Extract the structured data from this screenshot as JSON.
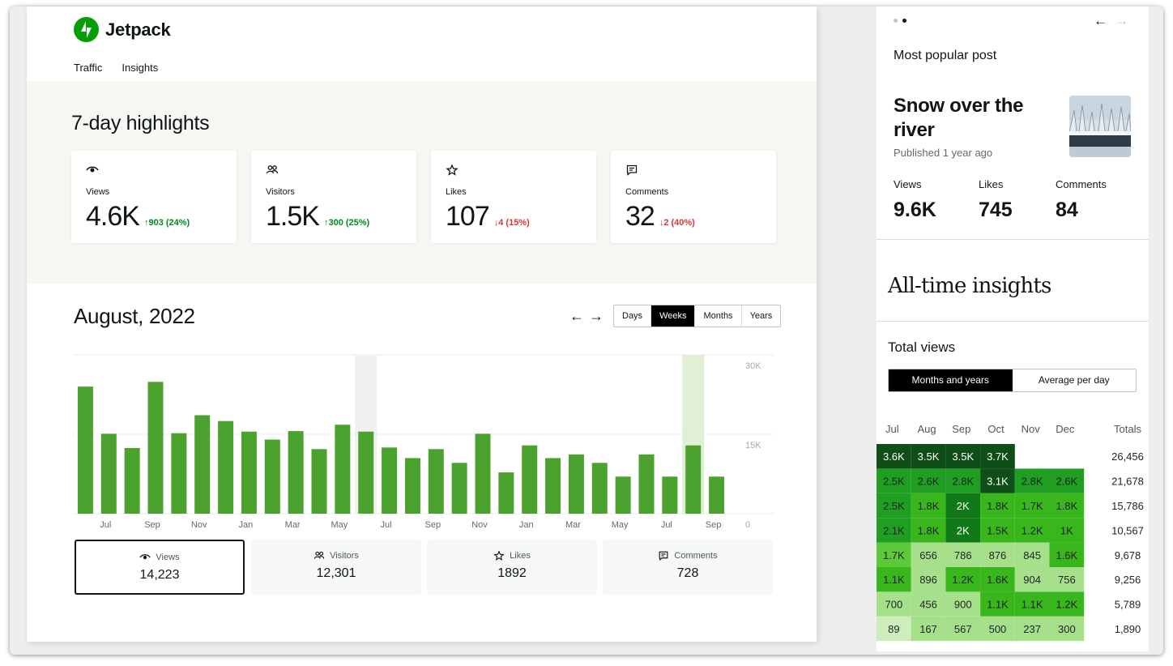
{
  "app": {
    "name": "Jetpack"
  },
  "tabs": [
    {
      "label": "Traffic",
      "active": true
    },
    {
      "label": "Insights",
      "active": false
    }
  ],
  "highlights": {
    "title": "7-day highlights",
    "cards": [
      {
        "icon": "eye-icon",
        "label": "Views",
        "value": "4.6K",
        "change": "↑903 (24%)",
        "direction": "up"
      },
      {
        "icon": "people-icon",
        "label": "Visitors",
        "value": "1.5K",
        "change": "↑300 (25%)",
        "direction": "up"
      },
      {
        "icon": "star-icon",
        "label": "Likes",
        "value": "107",
        "change": "↓4 (15%)",
        "direction": "down"
      },
      {
        "icon": "comment-icon",
        "label": "Comments",
        "value": "32",
        "change": "↓2 (40%)",
        "direction": "down"
      }
    ]
  },
  "period": {
    "title": "August, 2022",
    "prev_arrow": "←",
    "next_arrow": "→",
    "options": [
      {
        "label": "Days"
      },
      {
        "label": "Weeks",
        "active": true
      },
      {
        "label": "Months"
      },
      {
        "label": "Years"
      }
    ]
  },
  "chart_data": {
    "type": "bar",
    "title": "",
    "xlabel": "",
    "ylabel": "",
    "ylim": [
      0,
      30000
    ],
    "yticks": [
      "30K",
      "15K",
      "0"
    ],
    "xticks": [
      "Jul",
      "Sep",
      "Nov",
      "Jan",
      "Mar",
      "May",
      "Jul",
      "Sep",
      "Nov",
      "Jan",
      "Mar",
      "May",
      "Jul",
      "Sep"
    ],
    "values": [
      24000,
      15100,
      12400,
      24900,
      15200,
      18600,
      17500,
      15500,
      14000,
      15600,
      12200,
      16800,
      15500,
      12500,
      10500,
      12200,
      9600,
      15100,
      7800,
      12900,
      10500,
      11200,
      9600,
      7000,
      11200,
      7000,
      12900,
      7000
    ],
    "highlighted_bars": [
      12,
      26
    ],
    "color": "#4ca22f",
    "highlight_colors": {
      "12": "#f0f0ee",
      "26": "#e0efd5"
    }
  },
  "totals": [
    {
      "icon": "eye-icon",
      "label": "Views",
      "value": "14,223",
      "selected": true
    },
    {
      "icon": "people-icon",
      "label": "Visitors",
      "value": "12,301",
      "selected": false
    },
    {
      "icon": "star-icon",
      "label": "Likes",
      "value": "1892",
      "selected": false
    },
    {
      "icon": "comment-icon",
      "label": "Comments",
      "value": "728",
      "selected": false
    }
  ],
  "popular": {
    "heading": "Most popular post",
    "title": "Snow over the river",
    "published": "Published 1 year ago",
    "stats": [
      {
        "label": "Views",
        "value": "9.6K"
      },
      {
        "label": "Likes",
        "value": "745"
      },
      {
        "label": "Comments",
        "value": "84"
      }
    ],
    "prev_arrow": "←",
    "next_arrow": "→"
  },
  "insights": {
    "title": "All-time insights",
    "total_views": "Total views",
    "toggle": [
      {
        "label": "Months and years",
        "active": true
      },
      {
        "label": "Average per day",
        "active": false
      }
    ]
  },
  "heatmap": {
    "columns": [
      "Jul",
      "Aug",
      "Sep",
      "Oct",
      "Nov",
      "Dec",
      "Totals"
    ],
    "rows": [
      {
        "cells": [
          "3.6K",
          "3.5K",
          "3.5K",
          "3.7K",
          "",
          ""
        ],
        "total": "26,456"
      },
      {
        "cells": [
          "2.5K",
          "2.6K",
          "2.8K",
          "3.1K",
          "2.8K",
          "2.6K"
        ],
        "total": "21,678"
      },
      {
        "cells": [
          "2.5K",
          "1.8K",
          "2K",
          "1.8K",
          "1.7K",
          "1.8K"
        ],
        "total": "15,786"
      },
      {
        "cells": [
          "2.1K",
          "1.8K",
          "2K",
          "1.5K",
          "1.2K",
          "1K"
        ],
        "total": "10,567"
      },
      {
        "cells": [
          "1.7K",
          "656",
          "786",
          "876",
          "845",
          "1.6K"
        ],
        "total": "9,678"
      },
      {
        "cells": [
          "1.1K",
          "896",
          "1.2K",
          "1.6K",
          "904",
          "756"
        ],
        "total": "9,256"
      },
      {
        "cells": [
          "700",
          "456",
          "900",
          "1.1K",
          "1.1K",
          "1.2K"
        ],
        "total": "5,789"
      },
      {
        "cells": [
          "89",
          "167",
          "567",
          "500",
          "237",
          "300"
        ],
        "total": "1,890"
      }
    ],
    "colors": [
      [
        "#0f4d19",
        "#0f4d19",
        "#0f4d19",
        "#0f4d19",
        "",
        ""
      ],
      [
        "#1f9e22",
        "#1f9e22",
        "#1f9e22",
        "#0f4d19",
        "#1f9e22",
        "#1f9e22"
      ],
      [
        "#1f9e22",
        "#3ab61d",
        "#0f7a17",
        "#3ab61d",
        "#3ab61d",
        "#3ab61d"
      ],
      [
        "#1f9e22",
        "#3ab61d",
        "#0f7a17",
        "#3ab61d",
        "#3ab61d",
        "#3ab61d"
      ],
      [
        "#5cc93a",
        "#a6e08a",
        "#a6e08a",
        "#a6e08a",
        "#a6e08a",
        "#3ab61d"
      ],
      [
        "#3ab61d",
        "#a6e08a",
        "#3ab61d",
        "#3ab61d",
        "#a6e08a",
        "#a6e08a"
      ],
      [
        "#a6e08a",
        "#a6e08a",
        "#a6e08a",
        "#3ab61d",
        "#3ab61d",
        "#3ab61d"
      ],
      [
        "#cdeebb",
        "#a6e08a",
        "#a6e08a",
        "#a6e08a",
        "#a6e08a",
        "#a6e08a"
      ]
    ]
  }
}
